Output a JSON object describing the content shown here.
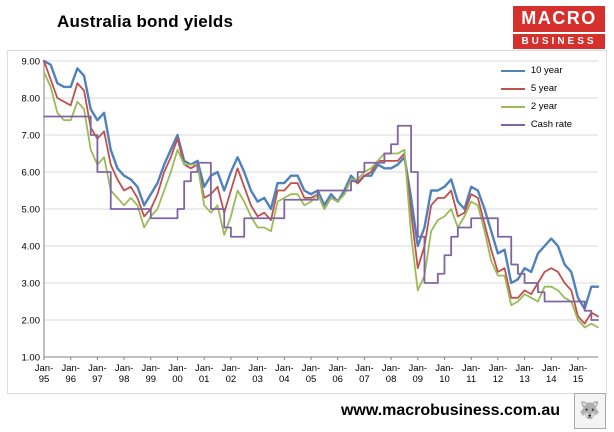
{
  "header": {
    "logo": {
      "line1": "MACRO",
      "line2": "BUSINESS",
      "bg": "#d6302c",
      "fg": "#ffffff"
    }
  },
  "footer": {
    "url": "www.macrobusiness.com.au",
    "wolf_icon": "wolf-crest"
  },
  "chart_data": {
    "type": "line",
    "title": "Australia bond yields",
    "xlabel": "",
    "ylabel": "",
    "ylim": [
      1,
      9
    ],
    "y_ticks": [
      1,
      2,
      3,
      4,
      5,
      6,
      7,
      8,
      9
    ],
    "grid": true,
    "grid_color": "#d9d9d9",
    "axis_color": "#808080",
    "legend_position": "top-right",
    "x_tick_labels": [
      "Jan-95",
      "Jan-96",
      "Jan-97",
      "Jan-98",
      "Jan-99",
      "Jan-00",
      "Jan-01",
      "Jan-02",
      "Jan-03",
      "Jan-04",
      "Jan-05",
      "Jan-06",
      "Jan-07",
      "Jan-08",
      "Jan-09",
      "Jan-10",
      "Jan-11",
      "Jan-12",
      "Jan-13",
      "Jan-14",
      "Jan-15"
    ],
    "points_per_tick": 4,
    "x_frequency": "quarterly",
    "series": [
      {
        "name": "10 year",
        "color": "#4F81BD",
        "width": 2.4,
        "step": false,
        "values": [
          9.0,
          8.9,
          8.4,
          8.3,
          8.3,
          8.8,
          8.6,
          7.7,
          7.4,
          7.6,
          6.6,
          6.1,
          5.9,
          5.8,
          5.6,
          5.1,
          5.4,
          5.7,
          6.2,
          6.6,
          7.0,
          6.3,
          6.2,
          6.3,
          5.6,
          5.9,
          6.0,
          5.5,
          6.0,
          6.4,
          6.0,
          5.5,
          5.2,
          5.3,
          5.0,
          5.7,
          5.7,
          5.9,
          5.9,
          5.5,
          5.4,
          5.5,
          5.1,
          5.4,
          5.2,
          5.5,
          5.9,
          5.7,
          5.9,
          5.9,
          6.2,
          6.1,
          6.1,
          6.2,
          6.4,
          5.3,
          4.0,
          4.5,
          5.5,
          5.5,
          5.6,
          5.8,
          5.2,
          5.0,
          5.6,
          5.5,
          5.0,
          4.4,
          3.8,
          3.9,
          3.0,
          3.1,
          3.4,
          3.3,
          3.8,
          4.0,
          4.2,
          4.0,
          3.5,
          3.3,
          2.6,
          2.3,
          2.9,
          2.9
        ]
      },
      {
        "name": "5 year",
        "color": "#C0504D",
        "width": 1.8,
        "step": false,
        "values": [
          9.0,
          8.5,
          8.0,
          7.9,
          7.8,
          8.4,
          8.2,
          7.2,
          6.9,
          7.1,
          6.2,
          5.8,
          5.5,
          5.6,
          5.3,
          4.8,
          5.0,
          5.4,
          6.0,
          6.4,
          6.9,
          6.2,
          6.1,
          6.2,
          5.3,
          5.4,
          5.6,
          4.9,
          5.5,
          6.1,
          5.6,
          5.1,
          4.8,
          4.9,
          4.7,
          5.5,
          5.5,
          5.7,
          5.7,
          5.3,
          5.3,
          5.4,
          5.0,
          5.3,
          5.2,
          5.4,
          5.8,
          5.7,
          5.9,
          6.0,
          6.3,
          6.3,
          6.3,
          6.3,
          6.5,
          4.9,
          3.4,
          4.0,
          5.1,
          5.3,
          5.3,
          5.5,
          4.8,
          4.9,
          5.4,
          5.3,
          4.6,
          3.9,
          3.3,
          3.4,
          2.6,
          2.6,
          2.8,
          2.7,
          3.0,
          3.3,
          3.4,
          3.3,
          3.0,
          2.8,
          2.1,
          1.9,
          2.2,
          2.1
        ]
      },
      {
        "name": "2 year",
        "color": "#9BBB59",
        "width": 1.8,
        "step": false,
        "values": [
          8.7,
          8.3,
          7.6,
          7.4,
          7.4,
          7.9,
          7.7,
          6.6,
          6.2,
          6.4,
          5.5,
          5.3,
          5.1,
          5.3,
          5.1,
          4.5,
          4.8,
          5.0,
          5.5,
          6.0,
          6.6,
          6.2,
          6.2,
          6.2,
          5.1,
          4.9,
          5.1,
          4.3,
          4.8,
          5.5,
          5.2,
          4.8,
          4.5,
          4.5,
          4.4,
          5.2,
          5.3,
          5.4,
          5.4,
          5.1,
          5.2,
          5.4,
          5.0,
          5.3,
          5.2,
          5.4,
          5.8,
          5.8,
          6.0,
          6.1,
          6.3,
          6.5,
          6.5,
          6.5,
          6.6,
          4.3,
          2.8,
          3.2,
          4.4,
          4.7,
          4.8,
          5.0,
          4.5,
          4.8,
          5.2,
          5.1,
          4.4,
          3.6,
          3.2,
          3.2,
          2.4,
          2.5,
          2.7,
          2.6,
          2.5,
          2.9,
          2.9,
          2.8,
          2.6,
          2.5,
          2.0,
          1.8,
          1.9,
          1.8
        ]
      },
      {
        "name": "Cash rate",
        "color": "#8064A2",
        "width": 1.8,
        "step": true,
        "values": [
          7.5,
          7.5,
          7.5,
          7.5,
          7.5,
          7.5,
          7.5,
          7.0,
          6.0,
          6.0,
          5.0,
          5.0,
          5.0,
          5.0,
          5.0,
          5.0,
          4.75,
          4.75,
          4.75,
          4.75,
          5.0,
          5.75,
          6.0,
          6.25,
          6.25,
          5.0,
          5.0,
          4.5,
          4.25,
          4.25,
          4.75,
          4.75,
          4.75,
          4.75,
          4.75,
          4.75,
          5.25,
          5.25,
          5.25,
          5.25,
          5.25,
          5.5,
          5.5,
          5.5,
          5.5,
          5.5,
          5.75,
          6.0,
          6.25,
          6.25,
          6.25,
          6.5,
          6.75,
          7.25,
          7.25,
          6.0,
          4.25,
          3.0,
          3.0,
          3.25,
          3.75,
          4.25,
          4.5,
          4.5,
          4.75,
          4.75,
          4.75,
          4.75,
          4.25,
          4.25,
          3.5,
          3.25,
          3.0,
          3.0,
          2.75,
          2.5,
          2.5,
          2.5,
          2.5,
          2.5,
          2.5,
          2.25,
          2.0,
          2.0
        ]
      }
    ]
  }
}
